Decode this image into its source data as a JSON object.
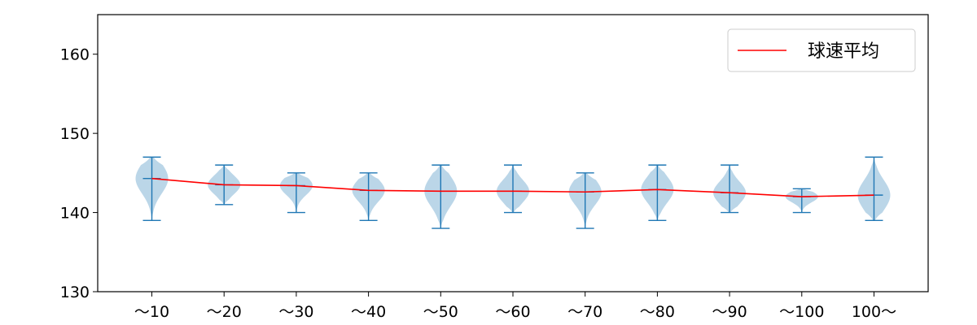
{
  "chart_data": {
    "type": "violin",
    "categories": [
      "～10",
      "～20",
      "～30",
      "～40",
      "～50",
      "～60",
      "～70",
      "～80",
      "～90",
      "～100",
      "100～"
    ],
    "ylim": [
      130,
      165
    ],
    "yticks": [
      130,
      140,
      150,
      160
    ],
    "grid": false,
    "legend_position": "top-right",
    "violin_color": "#1f77b4",
    "mean_line": {
      "name": "球速平均",
      "color": "#ff0000",
      "values": [
        144.3,
        143.5,
        143.4,
        142.8,
        142.7,
        142.7,
        142.6,
        142.9,
        142.5,
        142.0,
        142.2
      ]
    },
    "distributions": [
      {
        "min": 139,
        "max": 147,
        "mean": 144.3
      },
      {
        "min": 141,
        "max": 146,
        "mean": 143.5
      },
      {
        "min": 140,
        "max": 145,
        "mean": 143.4
      },
      {
        "min": 139,
        "max": 145,
        "mean": 142.8
      },
      {
        "min": 138,
        "max": 146,
        "mean": 142.7
      },
      {
        "min": 140,
        "max": 146,
        "mean": 142.7
      },
      {
        "min": 138,
        "max": 145,
        "mean": 142.6
      },
      {
        "min": 139,
        "max": 146,
        "mean": 142.9
      },
      {
        "min": 140,
        "max": 146,
        "mean": 142.5
      },
      {
        "min": 140,
        "max": 143,
        "mean": 142.0
      },
      {
        "min": 139,
        "max": 147,
        "mean": 142.2
      }
    ]
  }
}
